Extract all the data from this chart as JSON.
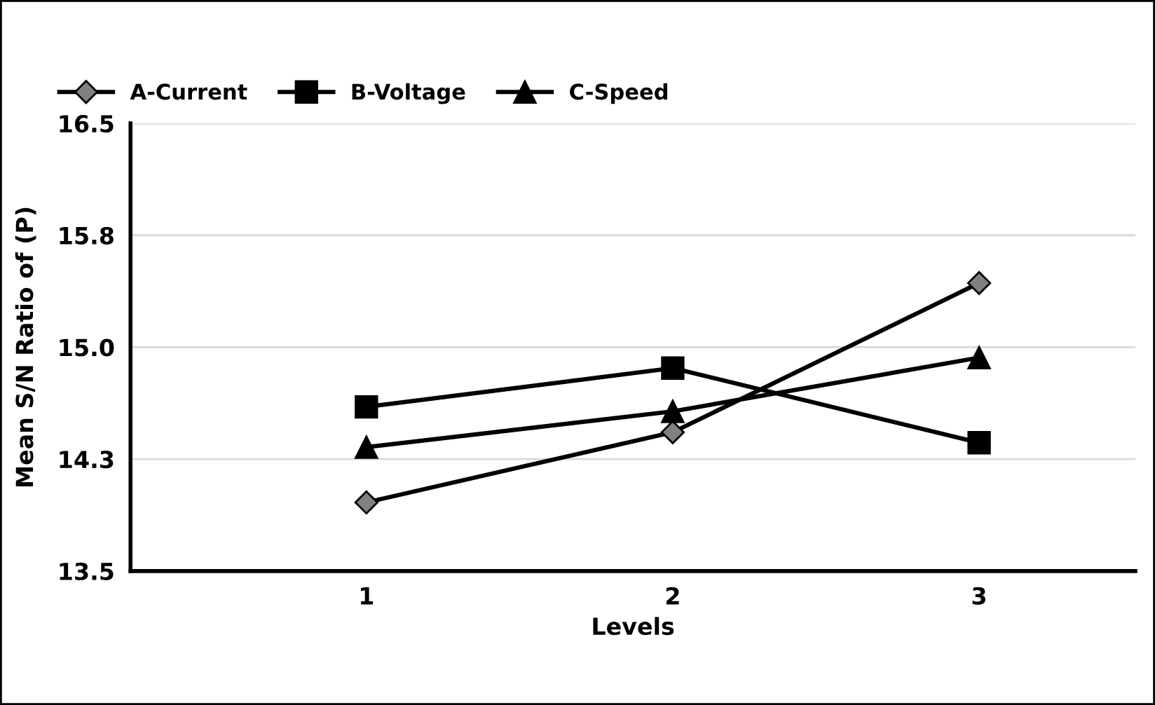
{
  "chart_data": {
    "type": "line",
    "xlabel": "Levels",
    "ylabel": "Mean S/N Ratio of (P)",
    "categories": [
      "1",
      "2",
      "3"
    ],
    "series": [
      {
        "name": "A-Current",
        "color": "#000000",
        "marker": "diamond",
        "values": [
          13.96,
          14.43,
          15.43
        ]
      },
      {
        "name": "B-Voltage",
        "color": "#000000",
        "marker": "square",
        "values": [
          14.6,
          14.86,
          14.36
        ]
      },
      {
        "name": "C-Speed",
        "color": "#000000",
        "marker": "triangle",
        "values": [
          14.33,
          14.57,
          14.93
        ]
      }
    ],
    "ylim": [
      13.5,
      16.5
    ],
    "yticks": [
      13.5,
      {
        "value": 14.25,
        "label": "14.3"
      },
      {
        "value": 15,
        "label": "15.0"
      },
      {
        "value": 15.75,
        "label": "15.8"
      },
      16.5
    ],
    "grid": "y",
    "legend": "top left",
    "line_style": "solid"
  }
}
